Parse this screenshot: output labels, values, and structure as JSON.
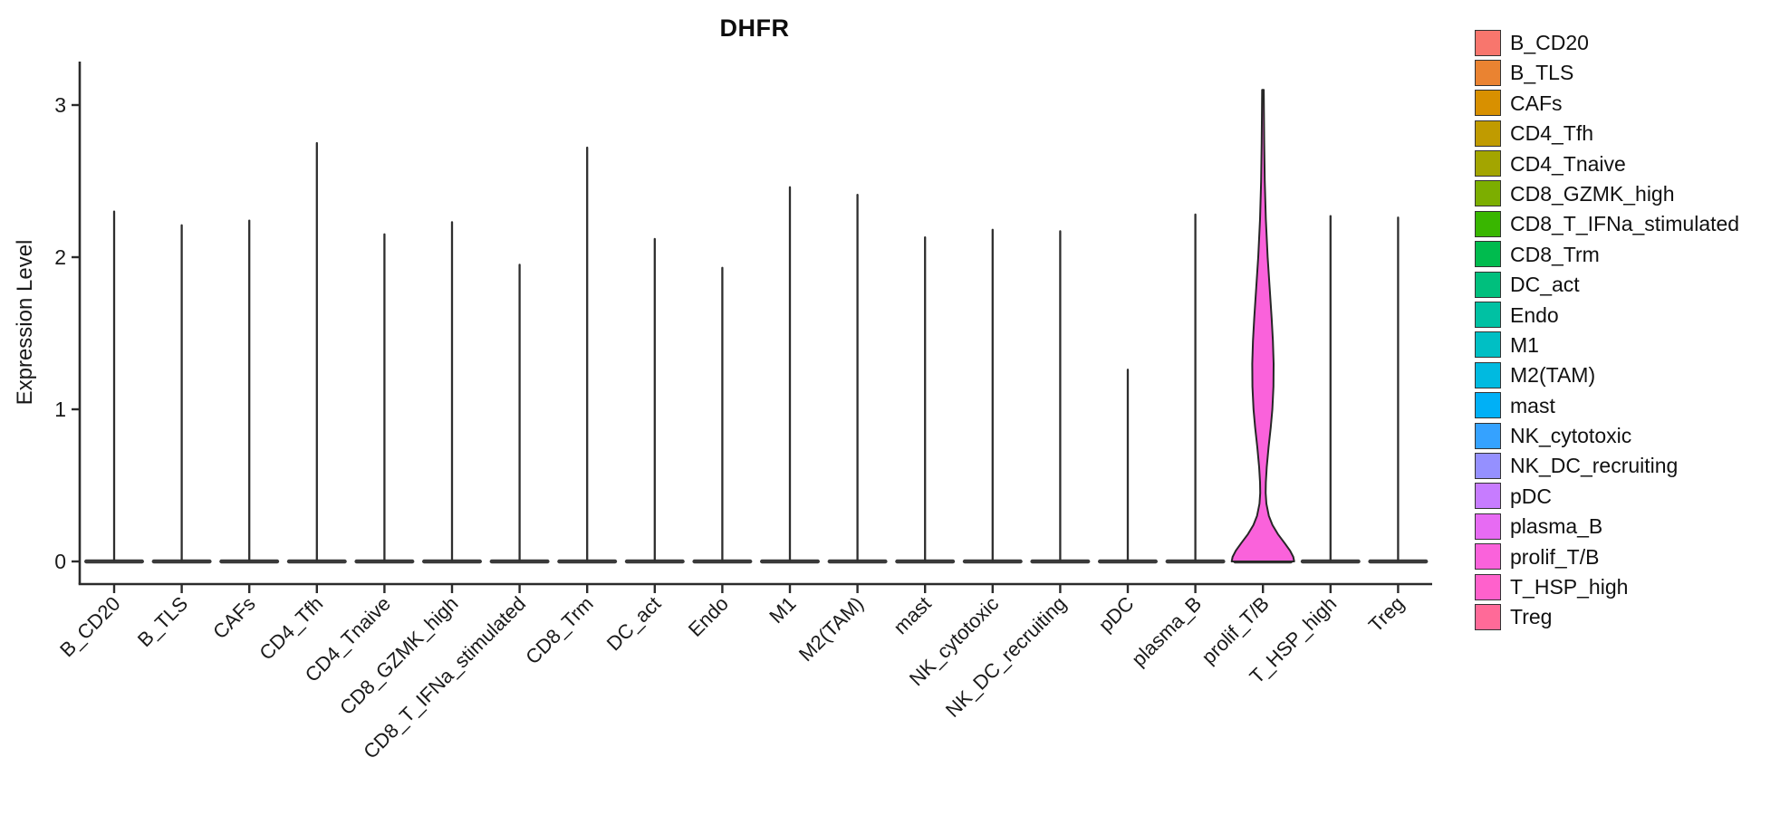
{
  "title": "DHFR",
  "y_axis": {
    "label": "Expression Level",
    "ticks": [
      0,
      1,
      2,
      3
    ]
  },
  "legend": {
    "items": [
      {
        "label": "B_CD20",
        "color": "#F8766D"
      },
      {
        "label": "B_TLS",
        "color": "#EA8331"
      },
      {
        "label": "CAFs",
        "color": "#D89000"
      },
      {
        "label": "CD4_Tfh",
        "color": "#C09B00"
      },
      {
        "label": "CD4_Tnaive",
        "color": "#A3A500"
      },
      {
        "label": "CD8_GZMK_high",
        "color": "#7CAE00"
      },
      {
        "label": "CD8_T_IFNa_stimulated",
        "color": "#39B600"
      },
      {
        "label": "CD8_Trm",
        "color": "#00BB4E"
      },
      {
        "label": "DC_act",
        "color": "#00BF7D"
      },
      {
        "label": "Endo",
        "color": "#00C1A3"
      },
      {
        "label": "M1",
        "color": "#00BFC4"
      },
      {
        "label": "M2(TAM)",
        "color": "#00BAE0"
      },
      {
        "label": "mast",
        "color": "#00B0F6"
      },
      {
        "label": "NK_cytotoxic",
        "color": "#35A2FF"
      },
      {
        "label": "NK_DC_recruiting",
        "color": "#9590FF"
      },
      {
        "label": "pDC",
        "color": "#C77CFF"
      },
      {
        "label": "plasma_B",
        "color": "#E76BF3"
      },
      {
        "label": "prolif_T/B",
        "color": "#FA62DB"
      },
      {
        "label": "T_HSP_high",
        "color": "#FF61CC"
      },
      {
        "label": "Treg",
        "color": "#FF6A98"
      }
    ]
  },
  "chart_data": {
    "type": "violin",
    "title": "DHFR",
    "xlabel": "",
    "ylabel": "Expression Level",
    "ylim": [
      0,
      3.3
    ],
    "yticks": [
      0,
      1,
      2,
      3
    ],
    "grid": false,
    "legend_position": "right",
    "categories": [
      "B_CD20",
      "B_TLS",
      "CAFs",
      "CD4_Tfh",
      "CD4_Tnaive",
      "CD8_GZMK_high",
      "CD8_T_IFNa_stimulated",
      "CD8_Trm",
      "DC_act",
      "Endo",
      "M1",
      "M2(TAM)",
      "mast",
      "NK_cytotoxic",
      "NK_DC_recruiting",
      "pDC",
      "plasma_B",
      "prolif_T/B",
      "T_HSP_high",
      "Treg"
    ],
    "colors": [
      "#F8766D",
      "#EA8331",
      "#D89000",
      "#C09B00",
      "#A3A500",
      "#7CAE00",
      "#39B600",
      "#00BB4E",
      "#00BF7D",
      "#00C1A3",
      "#00BFC4",
      "#00BAE0",
      "#00B0F6",
      "#35A2FF",
      "#9590FF",
      "#C77CFF",
      "#E76BF3",
      "#FA62DB",
      "#FF61CC",
      "#FF6A98"
    ],
    "max_expression": [
      2.3,
      2.21,
      2.24,
      2.75,
      2.15,
      2.23,
      1.95,
      2.72,
      2.12,
      1.93,
      2.46,
      2.41,
      2.13,
      2.18,
      2.17,
      1.26,
      2.28,
      3.1,
      2.27,
      2.26
    ],
    "distribution_note": "All clusters are dominated by zero expression (flat collapsed violin at 0 with a thin density spike up to max); only prolif_T/B shows a visible wide violin body",
    "prolif_violin": {
      "category": "prolif_T/B",
      "profile_value_halfwidth": [
        [
          3.1,
          0.9
        ],
        [
          2.95,
          1.1
        ],
        [
          2.75,
          1.4
        ],
        [
          2.5,
          2.0
        ],
        [
          2.25,
          3.2
        ],
        [
          2.0,
          5.2
        ],
        [
          1.8,
          7.4
        ],
        [
          1.6,
          9.6
        ],
        [
          1.45,
          11.0
        ],
        [
          1.3,
          11.8
        ],
        [
          1.15,
          11.6
        ],
        [
          1.0,
          10.4
        ],
        [
          0.88,
          8.6
        ],
        [
          0.75,
          6.2
        ],
        [
          0.62,
          4.2
        ],
        [
          0.52,
          3.2
        ],
        [
          0.45,
          3.0
        ],
        [
          0.38,
          3.8
        ],
        [
          0.3,
          6.5
        ],
        [
          0.24,
          10.5
        ],
        [
          0.18,
          16.5
        ],
        [
          0.12,
          24.0
        ],
        [
          0.07,
          30.0
        ],
        [
          0.03,
          33.5
        ],
        [
          0.0,
          34.5
        ]
      ]
    }
  }
}
